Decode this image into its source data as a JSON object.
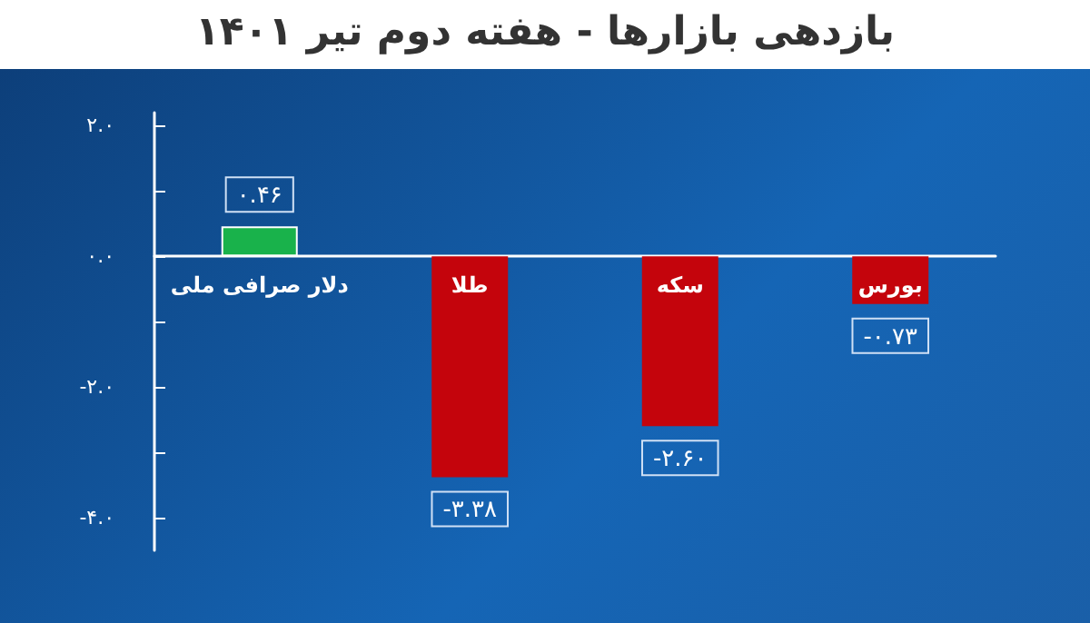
{
  "chart_data": {
    "type": "bar",
    "title": "بازدهی بازارها - هفته دوم تیر ۱۴۰۱",
    "categories": [
      "دلار صرافی ملی",
      "طلا",
      "سکه",
      "بورس"
    ],
    "values": [
      0.46,
      -3.38,
      -2.6,
      -0.73
    ],
    "colors": [
      "#19b24b",
      "#c4040c",
      "#c4040c",
      "#c4040c"
    ],
    "value_labels": [
      "۰.۴۶",
      "-۳.۳۸",
      "-۲.۶۰",
      "-۰.۷۳"
    ],
    "ylim": [
      -4.5,
      2.2
    ],
    "yticks": [
      {
        "value": 2,
        "label": "۲.۰"
      },
      {
        "value": 1,
        "label": null
      },
      {
        "value": 0,
        "label": "۰.۰"
      },
      {
        "value": -1,
        "label": null
      },
      {
        "value": -2,
        "label": "-۲.۰"
      },
      {
        "value": -3,
        "label": null
      },
      {
        "value": -4,
        "label": "-۴.۰"
      }
    ],
    "tick_labels": "y"
  }
}
